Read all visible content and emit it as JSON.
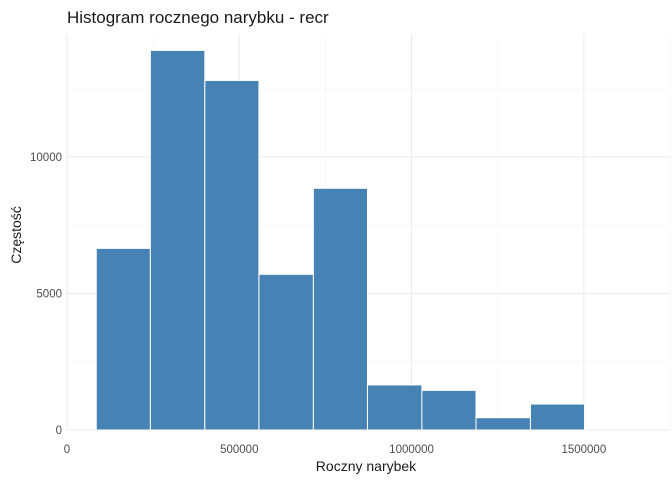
{
  "chart_data": {
    "type": "bar",
    "title": "Histogram rocznego narybku - recr",
    "xlabel": "Roczny narybek",
    "ylabel": "Częstość",
    "bar_color": "#4682b4",
    "background": "#ffffff",
    "grid": true,
    "legend": "none",
    "xlim": [
      0,
      1750000
    ],
    "ylim": [
      0,
      14500
    ],
    "x_ticks": [
      0,
      500000,
      1000000,
      1500000
    ],
    "x_tick_labels": [
      "0",
      "500000",
      "1000000",
      "1500000"
    ],
    "y_ticks": [
      0,
      5000,
      10000
    ],
    "y_tick_labels": [
      "0",
      "5000",
      "10000"
    ],
    "bins": [
      {
        "x0": 85000,
        "x1": 242000,
        "count": 6650
      },
      {
        "x0": 242000,
        "x1": 400000,
        "count": 13900
      },
      {
        "x0": 400000,
        "x1": 557000,
        "count": 12800
      },
      {
        "x0": 557000,
        "x1": 715000,
        "count": 5700
      },
      {
        "x0": 715000,
        "x1": 872000,
        "count": 8850
      },
      {
        "x0": 872000,
        "x1": 1030000,
        "count": 1650
      },
      {
        "x0": 1030000,
        "x1": 1187000,
        "count": 1450
      },
      {
        "x0": 1187000,
        "x1": 1345000,
        "count": 450
      },
      {
        "x0": 1345000,
        "x1": 1502000,
        "count": 950
      }
    ]
  }
}
